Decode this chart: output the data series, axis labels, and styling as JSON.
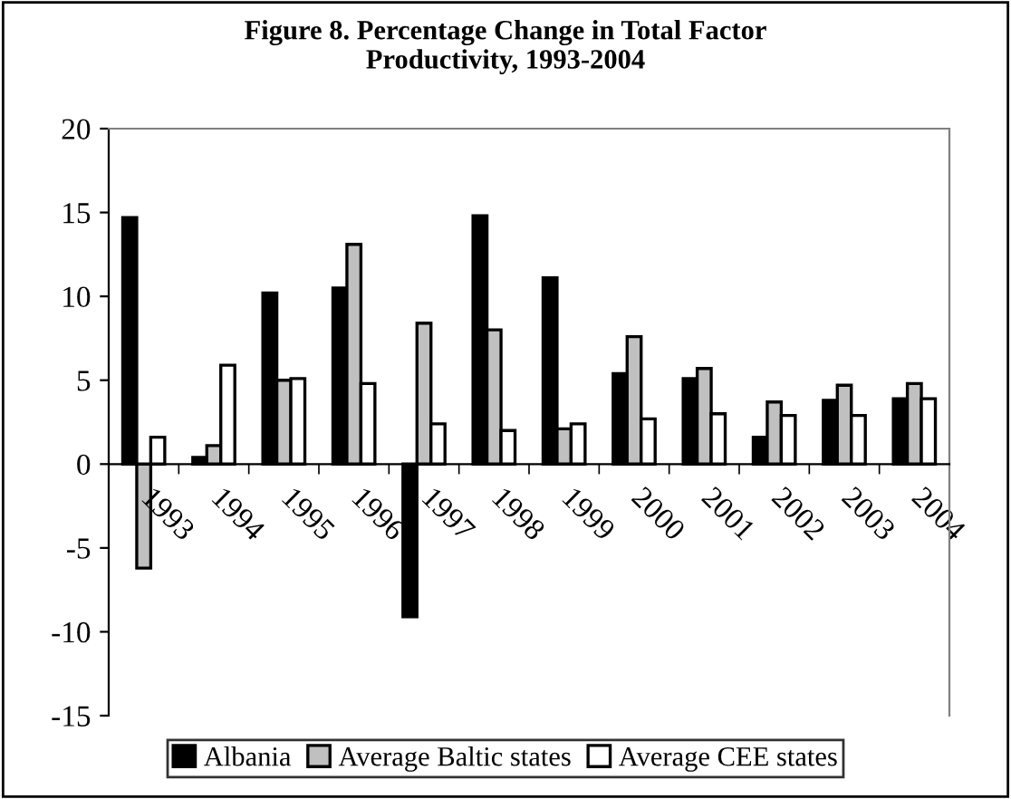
{
  "chart_data": {
    "type": "bar",
    "title": "Figure 8. Percentage Change in Total Factor\nProductivity, 1993-2004",
    "categories": [
      "1993",
      "1994",
      "1995",
      "1996",
      "1997",
      "1998",
      "1999",
      "2000",
      "2001",
      "2002",
      "2003",
      "2004"
    ],
    "series": [
      {
        "name": "Albania",
        "color": "#000000",
        "values": [
          14.7,
          0.4,
          10.2,
          10.5,
          -9.1,
          14.8,
          11.1,
          5.4,
          5.1,
          1.6,
          3.8,
          3.9
        ]
      },
      {
        "name": "Average Baltic states",
        "color": "#c0c0c0",
        "values": [
          -6.2,
          1.1,
          5.0,
          13.1,
          8.4,
          8.0,
          2.1,
          7.6,
          5.7,
          3.7,
          4.7,
          4.8
        ]
      },
      {
        "name": "Average CEE states",
        "color": "#ffffff",
        "values": [
          1.6,
          5.9,
          5.1,
          4.8,
          2.4,
          2.0,
          2.4,
          2.7,
          3.0,
          2.9,
          2.9,
          3.9
        ]
      }
    ],
    "ylim": [
      -15,
      20
    ],
    "yticks": [
      -15,
      -10,
      -5,
      0,
      5,
      10,
      15,
      20
    ],
    "grid": false,
    "legend": "bottom"
  }
}
